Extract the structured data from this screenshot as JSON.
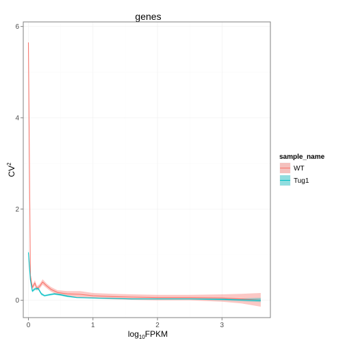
{
  "chart_data": {
    "type": "line",
    "title": "genes",
    "xlabel": {
      "main": "log",
      "sub": "10",
      "rest": "FPKM"
    },
    "ylabel": {
      "main": "CV",
      "sup": "2"
    },
    "xlim": [
      -0.08,
      3.75
    ],
    "ylim": [
      -0.38,
      6.1
    ],
    "x_ticks": [
      0,
      1,
      2,
      3
    ],
    "y_ticks": [
      0,
      2,
      4,
      6
    ],
    "grid": true,
    "legend": {
      "title": "sample_name",
      "position": "right"
    },
    "series": [
      {
        "name": "WT",
        "color": "#F8766D",
        "band_color": "#F8766D",
        "x": [
          0.0,
          0.03,
          0.06,
          0.1,
          0.13,
          0.17,
          0.22,
          0.28,
          0.35,
          0.45,
          0.6,
          0.8,
          1.0,
          1.3,
          1.6,
          2.0,
          2.5,
          3.0,
          3.3,
          3.6
        ],
        "y": [
          5.65,
          0.55,
          0.28,
          0.38,
          0.26,
          0.3,
          0.4,
          0.32,
          0.24,
          0.17,
          0.14,
          0.13,
          0.1,
          0.08,
          0.07,
          0.06,
          0.06,
          0.05,
          0.03,
          0.0
        ],
        "low": [
          5.6,
          0.5,
          0.23,
          0.32,
          0.21,
          0.25,
          0.34,
          0.27,
          0.19,
          0.12,
          0.08,
          0.06,
          0.04,
          0.02,
          0.01,
          0.0,
          0.0,
          -0.03,
          -0.07,
          -0.14
        ],
        "high": [
          5.7,
          0.6,
          0.33,
          0.44,
          0.31,
          0.35,
          0.46,
          0.37,
          0.29,
          0.22,
          0.2,
          0.2,
          0.16,
          0.14,
          0.13,
          0.12,
          0.12,
          0.13,
          0.14,
          0.16
        ]
      },
      {
        "name": "Tug1",
        "color": "#00BFC4",
        "band_color": "#00BFC4",
        "x": [
          0.0,
          0.03,
          0.06,
          0.1,
          0.15,
          0.2,
          0.25,
          0.32,
          0.4,
          0.5,
          0.6,
          0.75,
          1.0,
          1.3,
          1.6,
          2.0,
          2.5,
          3.0,
          3.3,
          3.6
        ],
        "y": [
          1.05,
          0.45,
          0.2,
          0.25,
          0.26,
          0.14,
          0.1,
          0.12,
          0.14,
          0.12,
          0.09,
          0.06,
          0.05,
          0.04,
          0.03,
          0.03,
          0.03,
          0.02,
          0.01,
          0.0
        ],
        "low": [
          1.0,
          0.42,
          0.17,
          0.22,
          0.23,
          0.11,
          0.08,
          0.1,
          0.12,
          0.1,
          0.07,
          0.05,
          0.04,
          0.03,
          0.02,
          0.02,
          0.02,
          0.0,
          -0.02,
          -0.04
        ],
        "high": [
          1.1,
          0.48,
          0.23,
          0.28,
          0.29,
          0.17,
          0.12,
          0.14,
          0.16,
          0.14,
          0.11,
          0.07,
          0.06,
          0.05,
          0.04,
          0.04,
          0.04,
          0.04,
          0.04,
          0.05
        ]
      }
    ]
  }
}
